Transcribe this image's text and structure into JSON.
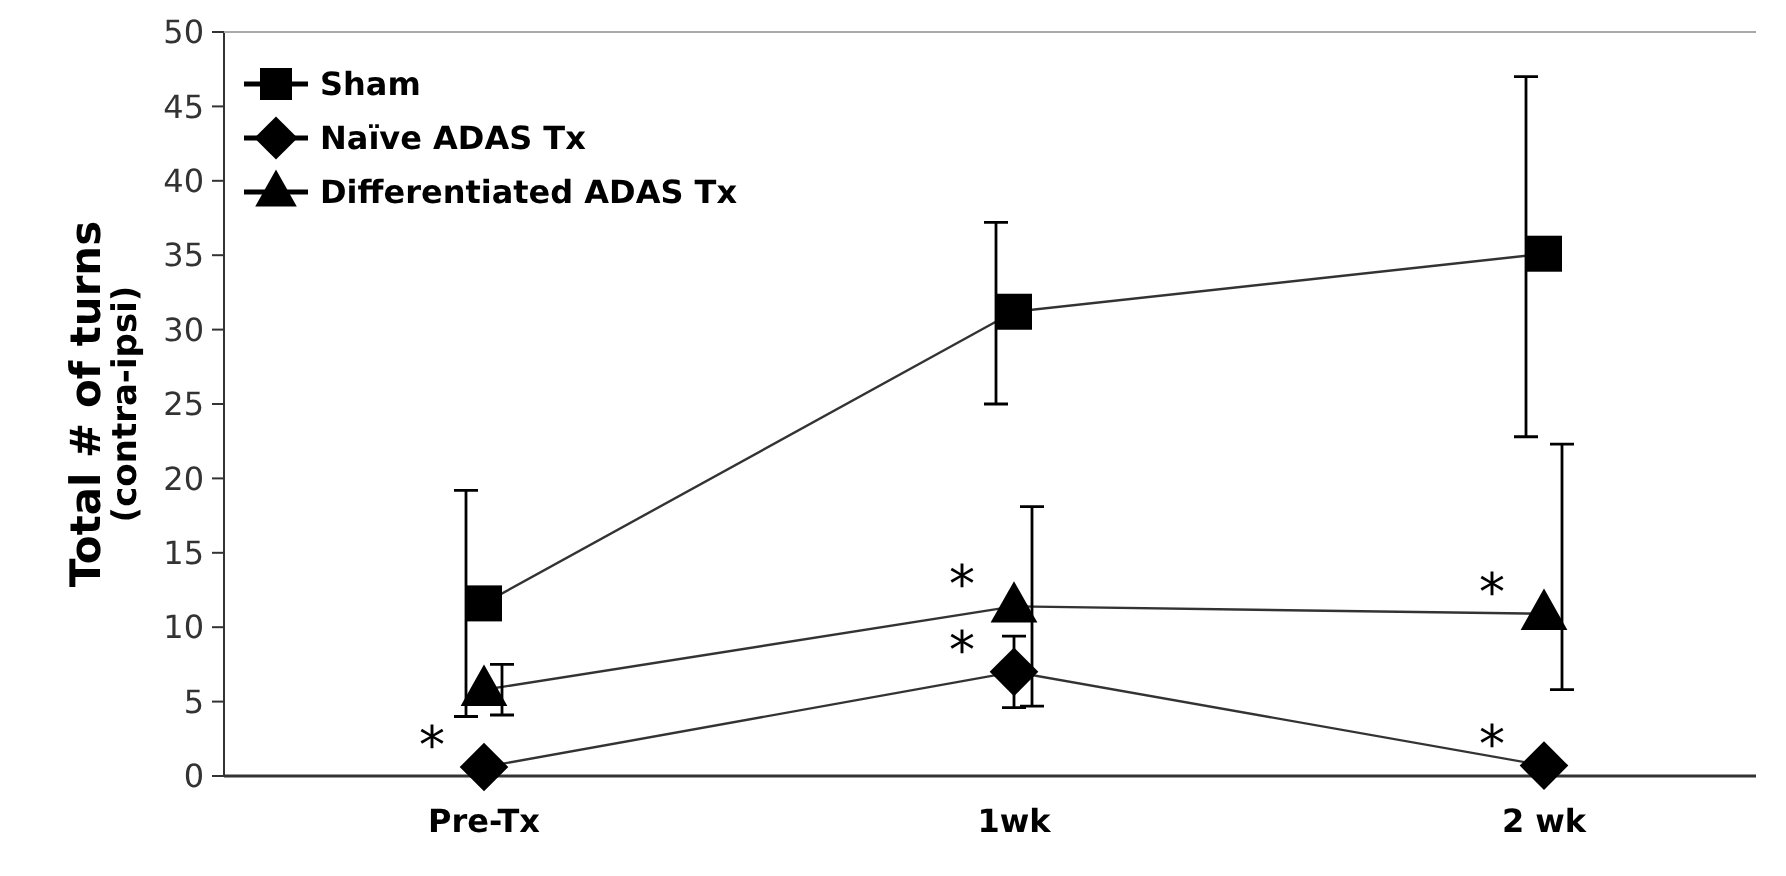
{
  "chart_data": {
    "type": "line",
    "ylabel": "Total # of turns\n(contra-ipsi)",
    "categories": [
      "Pre-Tx",
      "1wk",
      "2 wk"
    ],
    "ylim": [
      0,
      50
    ],
    "yticks": [
      0,
      5,
      10,
      15,
      20,
      25,
      30,
      35,
      40,
      45,
      50
    ],
    "legend": "top left",
    "grid": false,
    "line_style": "solid",
    "series": [
      {
        "name": "Sham",
        "color": "#000000",
        "marker": "square",
        "values": [
          11.6,
          31.2,
          35.1
        ],
        "errors": [
          [
            4.0,
            19.2
          ],
          [
            25.0,
            37.2
          ],
          [
            22.8,
            47.0
          ]
        ]
      },
      {
        "name": "Naïve ADAS Tx",
        "color": "#000000",
        "marker": "diamond",
        "values": [
          0.6,
          7.0,
          0.7
        ],
        "errors": [
          null,
          [
            4.6,
            9.4
          ],
          null
        ]
      },
      {
        "name": "Differentiated ADAS Tx",
        "color": "#000000",
        "marker": "triangle",
        "values": [
          5.8,
          11.4,
          10.9
        ],
        "errors": [
          [
            4.1,
            7.5
          ],
          [
            4.7,
            18.1
          ],
          [
            5.8,
            22.3
          ]
        ]
      }
    ],
    "annotations": [
      {
        "text": "*",
        "x": "Pre-Tx",
        "y": 0.6
      },
      {
        "text": "*",
        "x": "1wk",
        "y": 7.0
      },
      {
        "text": "*",
        "x": "1wk",
        "y": 11.4
      },
      {
        "text": "*",
        "x": "2 wk",
        "y": 0.7
      },
      {
        "text": "*",
        "x": "2 wk",
        "y": 10.9
      }
    ]
  }
}
